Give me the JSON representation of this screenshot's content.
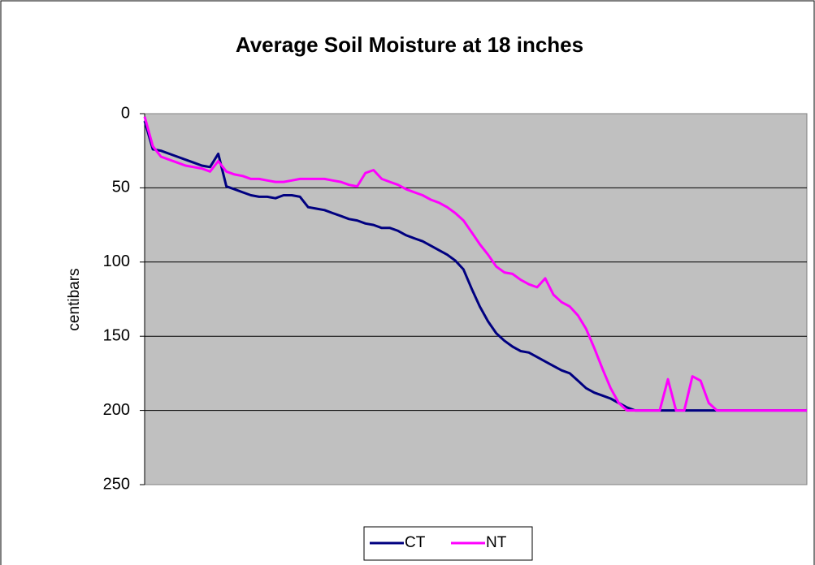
{
  "chart_data": {
    "type": "line",
    "title": "Average Soil Moisture at 18 inches",
    "y_label": "centibars",
    "categories": [
      null,
      null,
      null,
      null,
      null,
      null,
      null,
      null,
      null,
      null,
      null,
      null,
      null,
      null,
      null,
      null,
      null,
      null,
      null,
      null,
      null,
      null,
      null,
      null,
      null,
      null,
      null,
      null,
      null,
      null,
      null,
      null,
      null,
      null,
      null,
      null,
      null,
      null,
      null,
      null,
      null,
      null,
      null,
      null,
      null,
      null,
      null,
      null,
      null,
      null,
      null,
      null,
      null,
      null,
      null,
      null,
      null,
      null,
      null,
      null,
      null,
      null,
      null,
      null,
      null,
      null,
      null,
      null,
      null,
      null,
      null,
      null,
      null,
      null,
      null,
      null,
      null,
      null,
      null,
      null,
      null,
      null
    ],
    "series": [
      {
        "name": "CT",
        "color": "#000080",
        "values": [
          5,
          24,
          25,
          27,
          29,
          31,
          33,
          35,
          36,
          27,
          49,
          51,
          53,
          55,
          56,
          56,
          57,
          55,
          55,
          56,
          63,
          64,
          65,
          67,
          69,
          71,
          72,
          74,
          75,
          77,
          77,
          79,
          82,
          84,
          86,
          89,
          92,
          95,
          99,
          105,
          118,
          130,
          140,
          148,
          153,
          157,
          160,
          161,
          164,
          167,
          170,
          173,
          175,
          180,
          185,
          188,
          190,
          192,
          195,
          198,
          200,
          200,
          200,
          200,
          200,
          200,
          200,
          200,
          200,
          200,
          200,
          200,
          200,
          200,
          200,
          200,
          200,
          200,
          200,
          200,
          200,
          200
        ]
      },
      {
        "name": "NT",
        "color": "#ff00ff",
        "values": [
          2,
          22,
          29,
          31,
          33,
          35,
          36,
          37,
          39,
          32,
          39,
          41,
          42,
          44,
          44,
          45,
          46,
          46,
          45,
          44,
          44,
          44,
          44,
          45,
          46,
          48,
          49,
          40,
          38,
          44,
          46,
          48,
          51,
          53,
          55,
          58,
          60,
          63,
          67,
          72,
          80,
          88,
          95,
          103,
          107,
          108,
          112,
          115,
          117,
          111,
          122,
          127,
          130,
          136,
          145,
          158,
          172,
          185,
          195,
          200,
          200,
          200,
          200,
          200,
          179,
          200,
          200,
          177,
          180,
          195,
          200,
          200,
          200,
          200,
          200,
          200,
          200,
          200,
          200,
          200,
          200,
          200
        ]
      }
    ],
    "ylim": [
      250,
      0
    ],
    "yticks": [
      0,
      50,
      100,
      150,
      200,
      250
    ],
    "grid": true,
    "legend": "bottom"
  }
}
